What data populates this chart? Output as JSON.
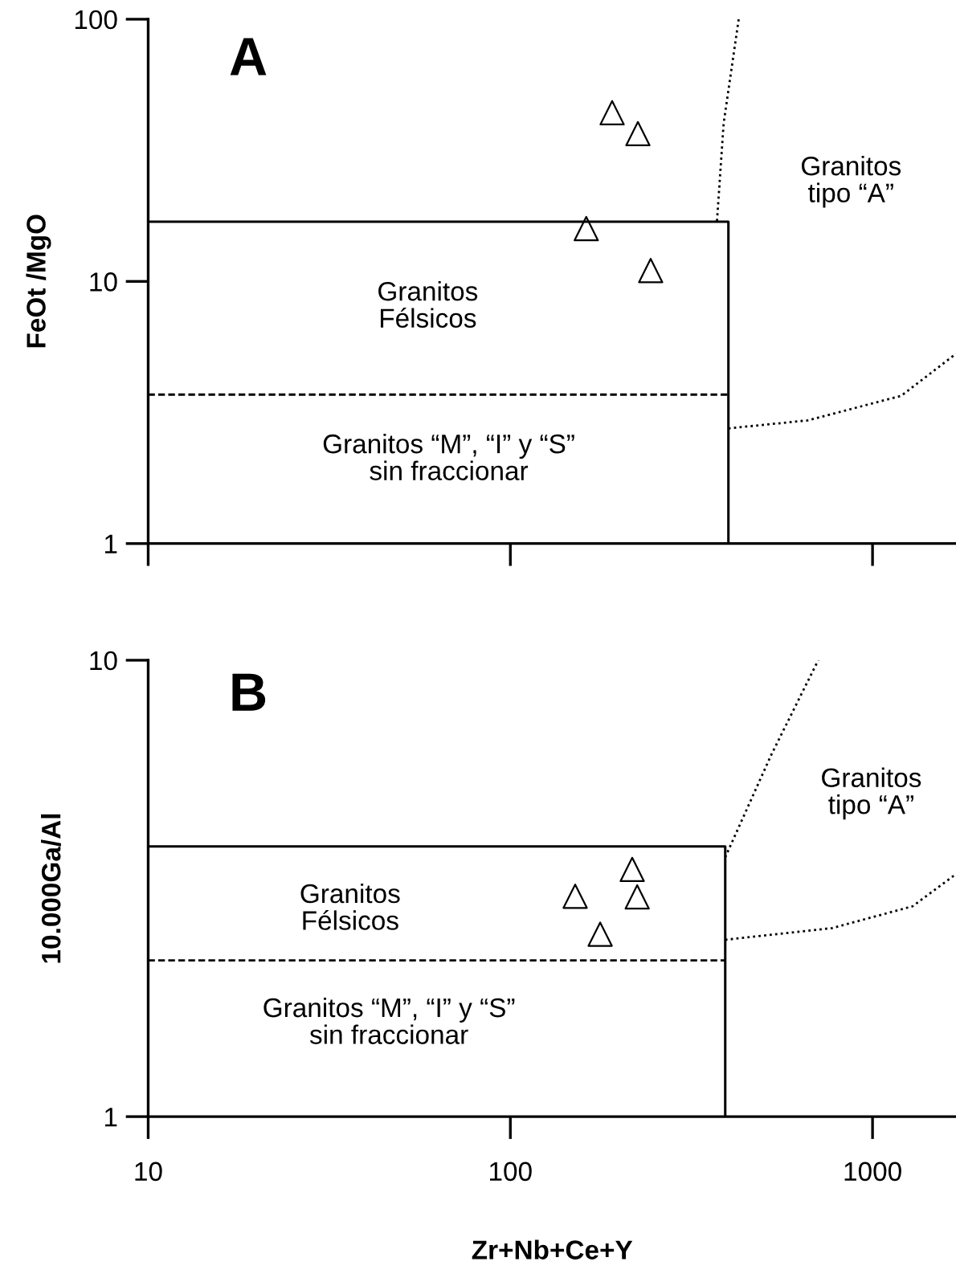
{
  "chart_data": [
    {
      "type": "scatter",
      "title": "A",
      "ylabel": "FeOt /MgO",
      "log": "xy",
      "xlim": [
        10,
        1700
      ],
      "ylim": [
        1,
        100
      ],
      "xticks": [
        {
          "value": 10,
          "label": null
        },
        {
          "value": 100,
          "label": null
        },
        {
          "value": 1000,
          "label": null
        }
      ],
      "yticks": [
        1,
        10,
        100
      ],
      "tick_labels": "y",
      "grid": false,
      "legend": false,
      "series": [
        {
          "marker": "triangle",
          "color": "#000000",
          "x": [
            191,
            225,
            162,
            244
          ],
          "values": [
            44,
            36.6,
            15.9,
            11.0
          ]
        },
        {
          "type": "line",
          "marker": "none",
          "line_style": "solid",
          "color": "#000000",
          "x": [
            10,
            400,
            400
          ],
          "values": [
            16.9,
            16.9,
            1
          ]
        },
        {
          "type": "line",
          "marker": "none",
          "line_style": "dashed",
          "color": "#000000",
          "x": [
            10,
            400
          ],
          "values": [
            3.7,
            3.7
          ]
        },
        {
          "type": "line",
          "marker": "none",
          "line_style": "dotted",
          "color": "#000000",
          "x": [
            372,
            388,
            427
          ],
          "values": [
            17,
            40,
            100
          ]
        },
        {
          "type": "line",
          "marker": "none",
          "line_style": "dotted",
          "color": "#000000",
          "x": [
            400,
            662,
            1200,
            1700
          ],
          "values": [
            2.75,
            2.95,
            3.66,
            5.3
          ]
        }
      ],
      "annotations": [
        "Granitos\nFélsicos",
        "Granitos “M”, “I” y “S”\nsin fraccionar",
        "Granitos\ntipo “A”"
      ]
    },
    {
      "type": "scatter",
      "title": "B",
      "ylabel": "10.000Ga/Al",
      "xlabel": "Zr+Nb+Ce+Y",
      "log": "xy",
      "xlim": [
        10,
        1700
      ],
      "ylim": [
        1,
        10
      ],
      "xticks": [
        10,
        100,
        1000
      ],
      "yticks": [
        1,
        10
      ],
      "grid": false,
      "legend": false,
      "series": [
        {
          "marker": "triangle",
          "color": "#000000",
          "x": [
            217,
            151,
            224,
            177
          ],
          "values": [
            3.48,
            3.04,
            3.03,
            2.51
          ]
        },
        {
          "type": "line",
          "marker": "none",
          "line_style": "solid",
          "color": "#000000",
          "x": [
            10,
            392,
            392
          ],
          "values": [
            3.91,
            3.91,
            1
          ]
        },
        {
          "type": "line",
          "marker": "none",
          "line_style": "dashed",
          "color": "#000000",
          "x": [
            10,
            392
          ],
          "values": [
            2.2,
            2.2
          ]
        },
        {
          "type": "line",
          "marker": "none",
          "line_style": "dotted",
          "color": "#000000",
          "x": [
            392,
            525,
            708
          ],
          "values": [
            3.7,
            6.2,
            10
          ]
        },
        {
          "type": "line",
          "marker": "none",
          "line_style": "dotted",
          "color": "#000000",
          "x": [
            392,
            775,
            1290,
            1700
          ],
          "values": [
            2.44,
            2.59,
            2.89,
            3.4
          ]
        }
      ],
      "annotations": [
        "Granitos\nFélsicos",
        "Granitos “M”, “I” y “S”\nsin fraccionar",
        "Granitos\ntipo “A”"
      ]
    }
  ]
}
